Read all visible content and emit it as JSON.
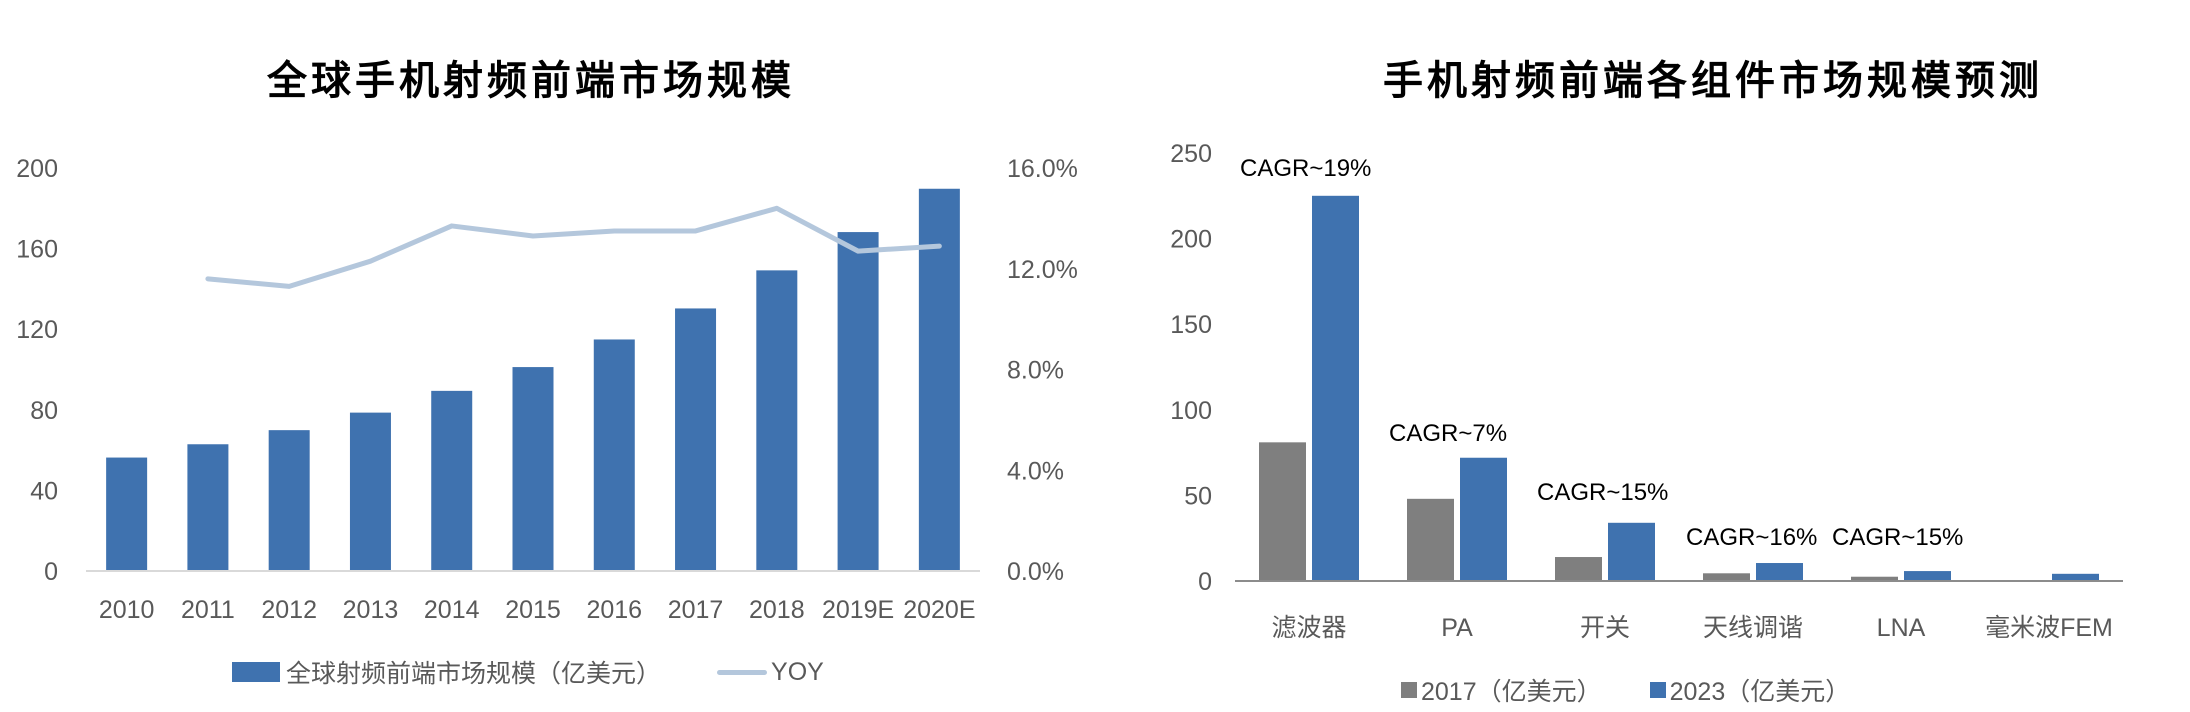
{
  "colors": {
    "bar_blue": "#3f72af",
    "bar_gray": "#7f7f7f",
    "line_yoy": "#b4c7dc",
    "axis": "#d9d9d9",
    "axis_right": "#8c8c8c",
    "tick_text": "#595959"
  },
  "left": {
    "title": "全球手机射频前端市场规模",
    "legend": {
      "bar_label": "全球射频前端市场规模（亿美元）",
      "line_label": "YOY"
    }
  },
  "right": {
    "title": "手机射频前端各组件市场规模预测",
    "legend": {
      "s2017_label": "2017（亿美元）",
      "s2023_label": "2023（亿美元）"
    }
  },
  "chart_data": [
    {
      "type": "bar",
      "title": "全球手机射频前端市场规模",
      "categories": [
        "2010",
        "2011",
        "2012",
        "2013",
        "2014",
        "2015",
        "2016",
        "2017",
        "2018",
        "2019E",
        "2020E"
      ],
      "series": [
        {
          "name": "全球射频前端市场规模（亿美元）",
          "type": "bar",
          "axis": "left",
          "values": [
            56.3,
            62.9,
            69.9,
            78.6,
            89.4,
            101.2,
            114.9,
            130.3,
            149.2,
            168.2,
            189.7
          ]
        },
        {
          "name": "YOY",
          "type": "line",
          "axis": "right",
          "values": [
            null,
            11.6,
            11.3,
            12.3,
            13.7,
            13.3,
            13.5,
            13.5,
            14.4,
            12.7,
            12.9
          ]
        }
      ],
      "y_left": {
        "ticks": [
          "0",
          "40",
          "80",
          "120",
          "160",
          "200"
        ],
        "ylim": [
          0,
          200
        ]
      },
      "y_right": {
        "ticks": [
          "0.0%",
          "4.0%",
          "8.0%",
          "12.0%",
          "16.0%"
        ],
        "ylim": [
          0,
          16
        ]
      },
      "xlabel": "",
      "ylabel": "",
      "grid": false,
      "legend_position": "bottom"
    },
    {
      "type": "bar",
      "title": "手机射频前端各组件市场规模预测",
      "categories": [
        "滤波器",
        "PA",
        "开关",
        "天线调谐",
        "LNA",
        "毫米波FEM"
      ],
      "series": [
        {
          "name": "2017（亿美元）",
          "values": [
            81,
            48,
            14,
            4.5,
            2.5,
            0
          ]
        },
        {
          "name": "2023（亿美元）",
          "values": [
            225,
            72,
            34,
            10.5,
            5.8,
            4.2
          ]
        }
      ],
      "annotations": [
        "CAGR~19%",
        "CAGR~7%",
        "CAGR~15%",
        "CAGR~16%",
        "CAGR~15%",
        ""
      ],
      "y": {
        "ticks": [
          "0",
          "50",
          "100",
          "150",
          "200",
          "250"
        ],
        "ylim": [
          0,
          250
        ]
      },
      "xlabel": "",
      "ylabel": "",
      "grid": false,
      "legend_position": "bottom"
    }
  ]
}
